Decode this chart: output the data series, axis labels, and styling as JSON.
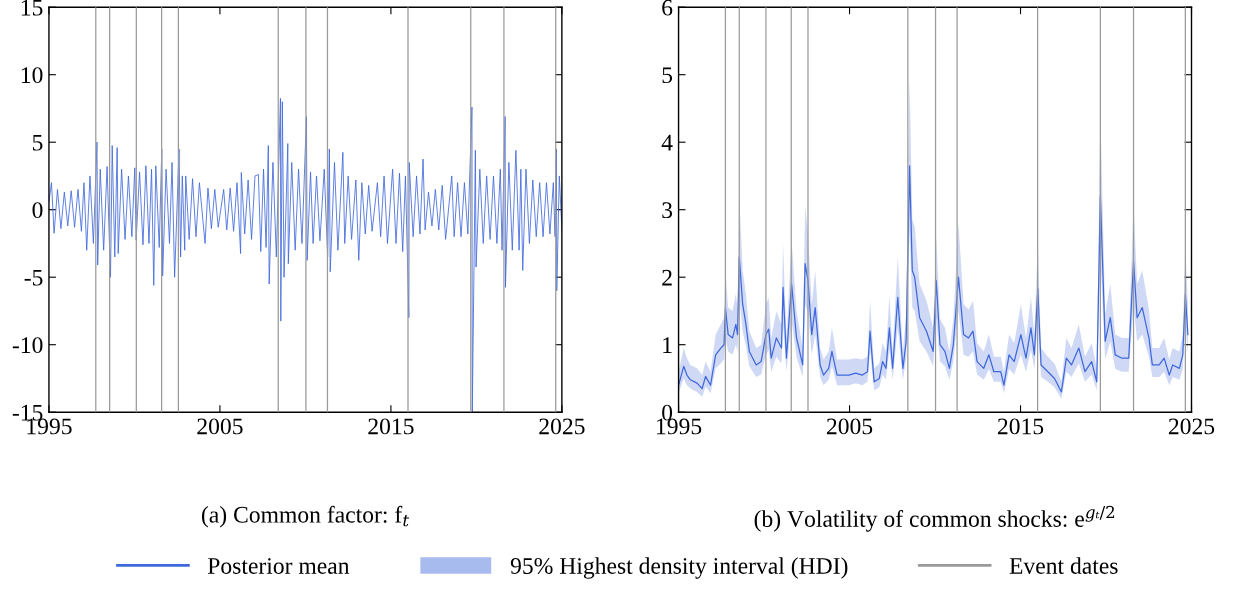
{
  "chart_data": [
    {
      "type": "line",
      "xlabel": "(a) Common factor: f$_{t}$",
      "xlim": [
        1995,
        2025
      ],
      "xticks": [
        1995,
        2005,
        2015,
        2025
      ],
      "ylim": [
        -15,
        15
      ],
      "yticks": [
        -15,
        -10,
        -5,
        0,
        5,
        10,
        15
      ],
      "series": [
        {
          "color": "#3f68dc",
          "x": [
            1995.0,
            1995.15,
            1995.3,
            1995.5,
            1995.7,
            1995.9,
            1996.1,
            1996.3,
            1996.5,
            1996.7,
            1996.9,
            1997.05,
            1997.21,
            1997.4,
            1997.6,
            1997.81,
            1997.85,
            1998.0,
            1998.2,
            1998.4,
            1998.6,
            1998.7,
            1998.85,
            1998.99,
            1999.05,
            1999.25,
            1999.45,
            1999.65,
            1999.85,
            2000.02,
            2000.1,
            2000.3,
            2000.5,
            2000.67,
            2000.85,
            2001.0,
            2001.13,
            2001.25,
            2001.45,
            2001.6,
            2001.65,
            2001.85,
            2002.05,
            2002.2,
            2002.35,
            2002.61,
            2002.7,
            2002.8,
            2002.94,
            2003.0,
            2003.2,
            2003.4,
            2003.6,
            2003.8,
            2004.13,
            2004.3,
            2004.5,
            2004.7,
            2004.9,
            2005.22,
            2005.4,
            2005.6,
            2005.8,
            2006.0,
            2006.21,
            2006.25,
            2006.45,
            2006.65,
            2006.85,
            2007.05,
            2007.25,
            2007.39,
            2007.55,
            2007.7,
            2007.83,
            2007.88,
            2008.1,
            2008.3,
            2008.54,
            2008.56,
            2008.65,
            2008.75,
            2008.97,
            2009.0,
            2009.2,
            2009.4,
            2009.6,
            2009.8,
            2010.06,
            2010.1,
            2010.3,
            2010.45,
            2010.65,
            2010.85,
            2011.1,
            2011.3,
            2011.4,
            2011.45,
            2011.7,
            2011.9,
            2012.19,
            2012.3,
            2012.5,
            2012.7,
            2012.95,
            2013.12,
            2013.3,
            2013.5,
            2013.7,
            2013.9,
            2014.21,
            2014.4,
            2014.6,
            2014.8,
            2015.1,
            2015.3,
            2015.5,
            2015.69,
            2015.85,
            2016.05,
            2016.07,
            2016.3,
            2016.5,
            2016.7,
            2016.88,
            2017.0,
            2017.2,
            2017.4,
            2017.6,
            2017.8,
            2018.0,
            2018.2,
            2018.56,
            2018.7,
            2018.9,
            2019.1,
            2019.3,
            2019.5,
            2019.74,
            2019.76,
            2019.94,
            2019.98,
            2020.2,
            2020.4,
            2020.6,
            2020.8,
            2021.0,
            2021.2,
            2021.4,
            2021.5,
            2021.68,
            2021.7,
            2021.9,
            2022.1,
            2022.31,
            2022.5,
            2022.6,
            2022.71,
            2022.9,
            2023.1,
            2023.3,
            2023.5,
            2023.7,
            2023.9,
            2024.1,
            2024.3,
            2024.5,
            2024.6,
            2024.68,
            2024.7,
            2024.85,
            2025.0
          ],
          "values": [
            0.6,
            2.0,
            -1.75,
            1.5,
            -1.4,
            1.3,
            -1.2,
            1.4,
            -1.3,
            1.5,
            -1.6,
            2.0,
            -3.0,
            2.5,
            -2.5,
            5.0,
            -4.1,
            3.0,
            -3.0,
            3.2,
            -5.0,
            4.75,
            -3.5,
            4.6,
            -3.25,
            3.0,
            -2.2,
            2.5,
            -2.0,
            3.1,
            -2.25,
            2.8,
            -2.6,
            3.25,
            -2.5,
            3.0,
            -5.6,
            3.25,
            -2.8,
            4.5,
            -4.9,
            3.0,
            -2.5,
            3.5,
            -5.0,
            4.5,
            -3.5,
            2.5,
            -3.0,
            2.5,
            -2.2,
            2.3,
            -2.0,
            2.0,
            -2.5,
            1.6,
            -1.4,
            1.5,
            -1.3,
            1.5,
            -1.5,
            1.6,
            -1.6,
            2.0,
            -3.25,
            2.75,
            -1.8,
            2.2,
            -2.2,
            2.5,
            2.6,
            -3.1,
            3.0,
            -2.8,
            4.75,
            -5.5,
            3.5,
            -3.5,
            8.25,
            -8.25,
            8.0,
            -5.0,
            4.9,
            -4.0,
            3.5,
            -3.0,
            3.0,
            -2.5,
            6.9,
            -3.75,
            2.8,
            -2.5,
            2.5,
            -2.3,
            3.0,
            -3.5,
            4.5,
            -4.6,
            3.5,
            -3.0,
            4.25,
            -2.5,
            2.5,
            -2.2,
            2.2,
            -3.75,
            2.0,
            -1.8,
            1.8,
            -1.6,
            2.0,
            -2.0,
            2.5,
            -2.5,
            3.0,
            -2.5,
            2.7,
            -3.1,
            2.5,
            -8.0,
            3.5,
            -2.0,
            2.5,
            -1.8,
            3.75,
            -1.5,
            1.3,
            -1.2,
            1.5,
            -1.5,
            1.8,
            -2.2,
            2.5,
            -2.0,
            2.0,
            -2.0,
            2.0,
            -1.8,
            7.6,
            -15,
            4.4,
            -4.25,
            3.0,
            -2.5,
            2.5,
            -2.2,
            2.5,
            -2.5,
            3.0,
            -3.0,
            6.9,
            -5.75,
            3.5,
            -3.0,
            4.4,
            -3.0,
            3.0,
            -4.5,
            3.0,
            -2.5,
            2.2,
            -2.0,
            2.0,
            -2.0,
            2.0,
            -1.8,
            2.0,
            -2.0,
            4.5,
            -6.0,
            2.5,
            -1.5
          ]
        }
      ],
      "ref_lines": [
        {
          "axis": "x",
          "value": 1997.74,
          "color": "#9a9a9a"
        },
        {
          "axis": "x",
          "value": 1998.55,
          "color": "#9a9a9a"
        },
        {
          "axis": "x",
          "value": 2000.11,
          "color": "#9a9a9a"
        },
        {
          "axis": "x",
          "value": 2001.59,
          "color": "#9a9a9a"
        },
        {
          "axis": "x",
          "value": 2002.57,
          "color": "#9a9a9a"
        },
        {
          "axis": "x",
          "value": 2008.41,
          "color": "#9a9a9a"
        },
        {
          "axis": "x",
          "value": 2010.03,
          "color": "#9a9a9a"
        },
        {
          "axis": "x",
          "value": 2011.29,
          "color": "#9a9a9a"
        },
        {
          "axis": "x",
          "value": 2016.0,
          "color": "#9a9a9a"
        },
        {
          "axis": "x",
          "value": 2019.67,
          "color": "#9a9a9a"
        },
        {
          "axis": "x",
          "value": 2021.61,
          "color": "#9a9a9a"
        },
        {
          "axis": "x",
          "value": 2024.64,
          "color": "#9a9a9a"
        }
      ]
    },
    {
      "type": "line",
      "xlabel": "(b) Volatility of common shocks: e$^{gₜ/2}$",
      "xlim": [
        1995,
        2025
      ],
      "xticks": [
        1995,
        2005,
        2015,
        2025
      ],
      "ylim": [
        0,
        6
      ],
      "yticks": [
        0,
        1,
        2,
        3,
        4,
        5,
        6
      ],
      "legend": "bottom",
      "annotations": [
        "95% Highest density interval (HDI)"
      ],
      "series": [
        {
          "type": "line",
          "name": "Posterior mean",
          "color": "#3f68dc",
          "x": [
            1995.0,
            1995.3,
            1995.49,
            1995.69,
            1996.08,
            1996.38,
            1996.58,
            1996.87,
            1997.17,
            1997.47,
            1997.66,
            1997.74,
            1997.9,
            1998.16,
            1998.35,
            1998.45,
            1998.55,
            1998.75,
            1998.94,
            1999.14,
            1999.54,
            1999.83,
            2000.11,
            2000.27,
            2000.42,
            2000.72,
            2001.02,
            2001.11,
            2001.31,
            2001.61,
            2001.9,
            2002.26,
            2002.4,
            2002.57,
            2002.79,
            2002.99,
            2003.28,
            2003.48,
            2003.78,
            2003.97,
            2004.27,
            2004.57,
            2004.96,
            2005.36,
            2005.75,
            2006.05,
            2006.2,
            2006.44,
            2006.74,
            2006.93,
            2007.13,
            2007.33,
            2007.52,
            2007.82,
            2008.12,
            2008.31,
            2008.51,
            2008.67,
            2008.81,
            2009.1,
            2009.5,
            2009.89,
            2010.07,
            2010.29,
            2010.58,
            2010.84,
            2011.07,
            2011.37,
            2011.67,
            2011.96,
            2012.22,
            2012.46,
            2012.85,
            2013.15,
            2013.44,
            2013.84,
            2014.03,
            2014.33,
            2014.63,
            2015.02,
            2015.32,
            2015.61,
            2015.81,
            2016.01,
            2016.2,
            2016.6,
            2016.99,
            2017.39,
            2017.68,
            2017.98,
            2018.41,
            2018.77,
            2019.16,
            2019.46,
            2019.67,
            2019.95,
            2020.25,
            2020.54,
            2020.94,
            2021.33,
            2021.61,
            2021.82,
            2022.12,
            2022.51,
            2022.71,
            2023.11,
            2023.4,
            2023.7,
            2023.9,
            2024.29,
            2024.49,
            2024.64,
            2024.79
          ],
          "values": [
            0.4,
            0.68,
            0.55,
            0.48,
            0.43,
            0.35,
            0.53,
            0.4,
            0.85,
            0.95,
            1.0,
            1.55,
            1.15,
            1.1,
            1.3,
            1.15,
            2.3,
            1.6,
            1.3,
            0.9,
            0.7,
            0.75,
            1.15,
            1.23,
            0.8,
            1.1,
            0.95,
            1.85,
            0.8,
            1.9,
            1.1,
            0.7,
            2.2,
            1.95,
            1.15,
            1.55,
            0.7,
            0.55,
            0.65,
            0.9,
            0.55,
            0.55,
            0.55,
            0.58,
            0.55,
            0.6,
            1.2,
            0.45,
            0.5,
            0.75,
            0.65,
            1.25,
            0.65,
            1.7,
            0.65,
            1.05,
            3.65,
            2.1,
            2.0,
            1.4,
            1.2,
            0.9,
            1.95,
            1.0,
            0.9,
            0.65,
            1.0,
            2.0,
            1.15,
            1.1,
            1.2,
            0.75,
            0.65,
            0.85,
            0.6,
            0.6,
            0.4,
            0.85,
            0.75,
            1.15,
            0.8,
            1.25,
            0.85,
            1.83,
            0.7,
            0.6,
            0.5,
            0.3,
            0.8,
            0.7,
            0.95,
            0.6,
            0.75,
            0.45,
            3.2,
            1.05,
            1.4,
            0.85,
            0.8,
            0.8,
            2.23,
            1.4,
            1.55,
            1.1,
            0.7,
            0.7,
            0.8,
            0.55,
            0.7,
            0.65,
            0.85,
            1.75,
            1.15
          ],
          "lower": [
            0.28,
            0.5,
            0.4,
            0.35,
            0.3,
            0.23,
            0.38,
            0.28,
            0.65,
            0.72,
            0.78,
            1.1,
            0.9,
            0.85,
            1.0,
            0.9,
            1.7,
            1.2,
            0.98,
            0.68,
            0.52,
            0.56,
            0.85,
            0.92,
            0.6,
            0.82,
            0.72,
            1.3,
            0.6,
            1.35,
            0.82,
            0.52,
            1.6,
            1.45,
            0.85,
            1.15,
            0.52,
            0.4,
            0.48,
            0.68,
            0.4,
            0.4,
            0.4,
            0.43,
            0.4,
            0.45,
            0.9,
            0.32,
            0.37,
            0.56,
            0.48,
            0.92,
            0.48,
            1.25,
            0.48,
            0.78,
            2.7,
            1.55,
            1.5,
            1.05,
            0.9,
            0.68,
            1.4,
            0.75,
            0.68,
            0.48,
            0.75,
            1.5,
            0.85,
            0.82,
            0.9,
            0.56,
            0.48,
            0.64,
            0.45,
            0.45,
            0.28,
            0.64,
            0.56,
            0.85,
            0.6,
            0.92,
            0.64,
            1.3,
            0.52,
            0.45,
            0.37,
            0.2,
            0.6,
            0.52,
            0.72,
            0.45,
            0.56,
            0.32,
            2.3,
            0.78,
            1.05,
            0.64,
            0.6,
            0.6,
            1.6,
            1.05,
            1.15,
            0.82,
            0.52,
            0.52,
            0.6,
            0.4,
            0.52,
            0.48,
            0.64,
            1.3,
            0.85
          ],
          "upper": [
            0.6,
            0.95,
            0.8,
            0.7,
            0.65,
            0.55,
            0.75,
            0.6,
            1.15,
            1.3,
            1.4,
            2.1,
            1.55,
            1.5,
            1.75,
            1.55,
            3.2,
            2.1,
            1.75,
            1.2,
            0.95,
            1.0,
            1.6,
            1.7,
            1.1,
            1.5,
            1.3,
            2.5,
            1.1,
            2.55,
            1.5,
            0.95,
            3.05,
            2.65,
            1.6,
            2.1,
            0.95,
            0.78,
            0.9,
            1.25,
            0.78,
            0.78,
            0.78,
            0.8,
            0.78,
            0.82,
            1.65,
            0.65,
            0.72,
            1.02,
            0.9,
            1.72,
            0.9,
            2.3,
            0.9,
            1.45,
            4.95,
            2.85,
            2.75,
            1.9,
            1.65,
            1.25,
            2.6,
            1.38,
            1.25,
            0.9,
            1.38,
            2.8,
            1.6,
            1.52,
            1.65,
            1.02,
            0.9,
            1.15,
            0.82,
            0.82,
            0.6,
            1.15,
            1.02,
            1.6,
            1.1,
            1.7,
            1.15,
            2.5,
            0.95,
            0.82,
            0.72,
            0.45,
            1.1,
            0.95,
            1.3,
            0.82,
            1.02,
            0.65,
            4.45,
            1.45,
            1.9,
            1.15,
            1.1,
            1.1,
            3.05,
            1.9,
            2.1,
            1.52,
            0.95,
            0.95,
            1.1,
            0.78,
            0.95,
            0.9,
            1.15,
            2.4,
            1.6
          ]
        }
      ],
      "ref_lines": [
        {
          "axis": "x",
          "value": 1997.74,
          "color": "#9a9a9a",
          "label": "Event dates"
        },
        {
          "axis": "x",
          "value": 1998.55,
          "color": "#9a9a9a"
        },
        {
          "axis": "x",
          "value": 2000.11,
          "color": "#9a9a9a"
        },
        {
          "axis": "x",
          "value": 2001.59,
          "color": "#9a9a9a"
        },
        {
          "axis": "x",
          "value": 2002.57,
          "color": "#9a9a9a"
        },
        {
          "axis": "x",
          "value": 2008.41,
          "color": "#9a9a9a"
        },
        {
          "axis": "x",
          "value": 2010.03,
          "color": "#9a9a9a"
        },
        {
          "axis": "x",
          "value": 2011.29,
          "color": "#9a9a9a"
        },
        {
          "axis": "x",
          "value": 2016.0,
          "color": "#9a9a9a"
        },
        {
          "axis": "x",
          "value": 2019.67,
          "color": "#9a9a9a"
        },
        {
          "axis": "x",
          "value": 2021.61,
          "color": "#9a9a9a"
        },
        {
          "axis": "x",
          "value": 2024.64,
          "color": "#9a9a9a"
        }
      ]
    }
  ]
}
